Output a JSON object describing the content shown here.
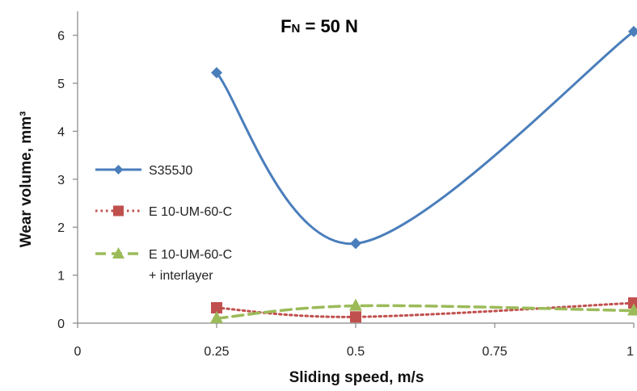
{
  "chart_data": {
    "type": "line",
    "title": {
      "main": "F",
      "sub": "N",
      "rest": " = 50 N"
    },
    "xlabel": "Sliding speed, m/s",
    "ylabel": "Wear volume, mm³",
    "xlim": [
      0,
      1
    ],
    "ylim": [
      0,
      6.5
    ],
    "x_ticks": [
      0,
      0.25,
      0.5,
      0.75,
      1
    ],
    "x_tick_labels": [
      "0",
      "0.25",
      "0.5",
      "0.75",
      "1"
    ],
    "y_ticks": [
      0,
      1,
      2,
      3,
      4,
      5,
      6
    ],
    "y_tick_labels": [
      "0",
      "1",
      "2",
      "3",
      "4",
      "5",
      "6"
    ],
    "grid": false,
    "legend_position": "left",
    "series": [
      {
        "name": "S355J0",
        "x": [
          0.25,
          0.5,
          1
        ],
        "values": [
          5.22,
          1.66,
          6.08
        ],
        "color": "#4a7ebb",
        "marker": "diamond",
        "line_style": "solid"
      },
      {
        "name": "E 10-UM-60-C",
        "x": [
          0.25,
          0.5,
          1
        ],
        "values": [
          0.32,
          0.13,
          0.42
        ],
        "color": "#c0504d",
        "marker": "square",
        "line_style": "dotted"
      },
      {
        "name": "E 10-UM-60-C",
        "name_line2": "+ interlayer",
        "x": [
          0.25,
          0.5,
          1
        ],
        "values": [
          0.1,
          0.36,
          0.26
        ],
        "color": "#9bbb59",
        "marker": "triangle",
        "line_style": "dashed"
      }
    ]
  }
}
